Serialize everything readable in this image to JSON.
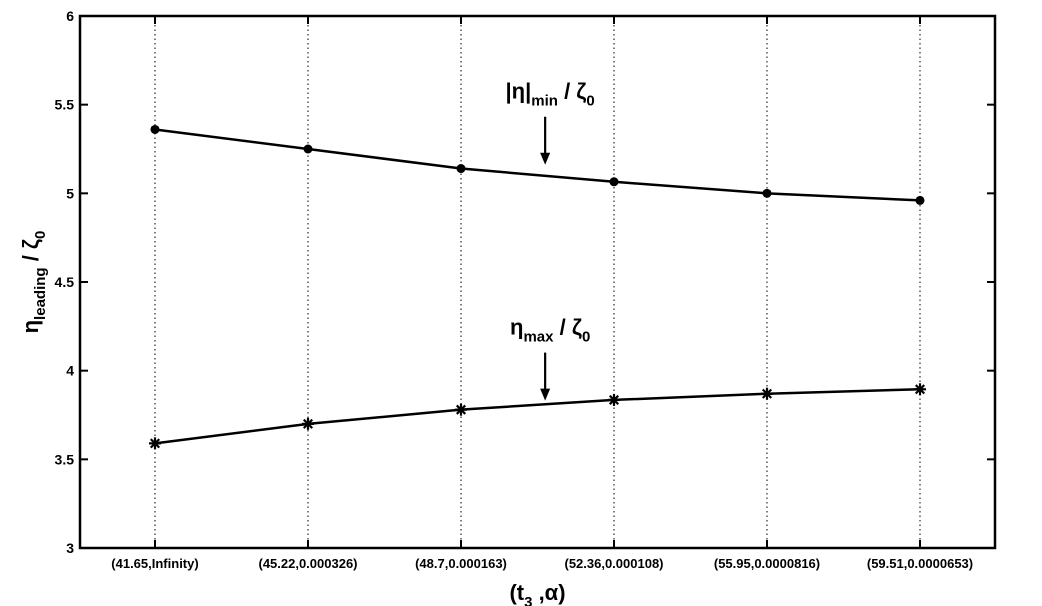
{
  "chart_data": {
    "type": "line",
    "categories": [
      "(41.65,Infinity)",
      "(45.22,0.000326)",
      "(48.7,0.000163)",
      "(52.36,0.000108)",
      "(55.95,0.0000816)",
      "(59.51,0.0000653)"
    ],
    "series": [
      {
        "values": [
          5.36,
          5.25,
          5.14,
          5.065,
          5.0,
          4.96
        ],
        "marker": "dot"
      },
      {
        "values": [
          3.59,
          3.7,
          3.78,
          3.835,
          3.87,
          3.895
        ],
        "marker": "star"
      }
    ],
    "annotations": [
      {
        "main": "|η|",
        "sub": "min",
        "tail": " / ζ",
        "tailsub": "0",
        "at_category": 2.55,
        "at_value": 5.15
      },
      {
        "main": "η",
        "sub": "max",
        "tail": " / ζ",
        "tailsub": "0",
        "at_category": 2.55,
        "at_value": 3.82
      }
    ],
    "xlabel": {
      "main": "(t",
      "sub": "3",
      "tail": " ,α)"
    },
    "ylabel": {
      "main": "η",
      "sub": "leading",
      "tail": " / ζ",
      "tailsub": "0"
    },
    "ylim": [
      3,
      6
    ],
    "yticks": [
      "3",
      "3.5",
      "4",
      "4.5",
      "5",
      "5.5",
      "6"
    ],
    "ytick_values": [
      3,
      3.5,
      4,
      4.5,
      5,
      5.5,
      6
    ],
    "grid": "vertical-dotted",
    "line_color": "#000000"
  }
}
